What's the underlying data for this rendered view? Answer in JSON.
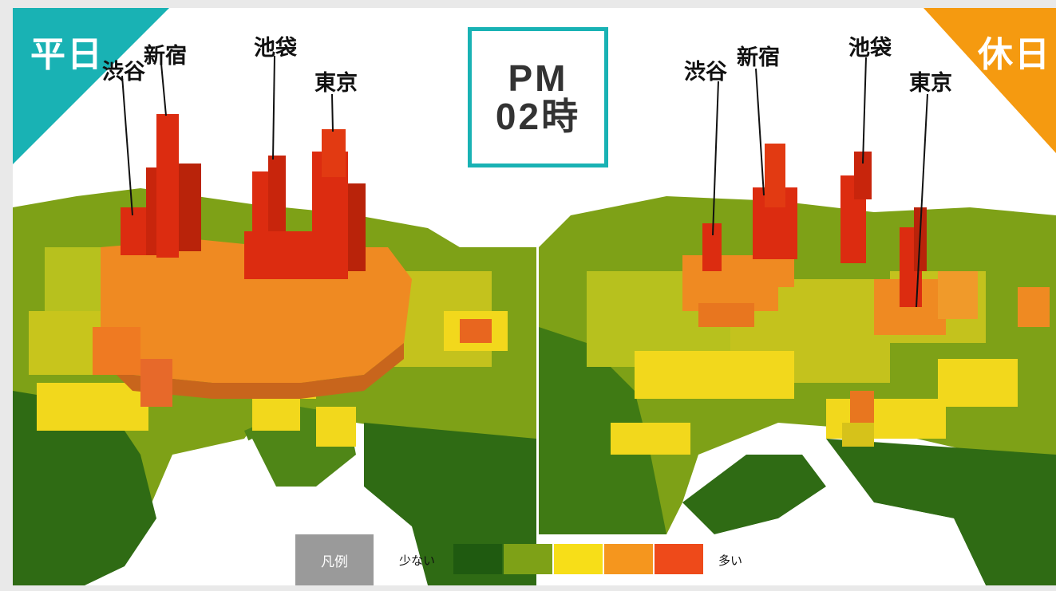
{
  "time": {
    "line1": "PM",
    "line2": "02時"
  },
  "panels": {
    "weekday": {
      "label": "平日",
      "label_color": "#19b2b4",
      "stations": [
        "渋谷",
        "新宿",
        "池袋",
        "東京"
      ]
    },
    "holiday": {
      "label": "休日",
      "label_color": "#f59a10",
      "stations": [
        "渋谷",
        "新宿",
        "池袋",
        "東京"
      ]
    }
  },
  "legend": {
    "title": "凡例",
    "low_label": "少ない",
    "high_label": "多い",
    "scale_colors": [
      "#1f5a10",
      "#7ea117",
      "#f7de18",
      "#f5961e",
      "#ee4a1a"
    ]
  },
  "colors": {
    "dark_green": "#2f6b14",
    "green": "#6f9a1c",
    "yellow_green": "#b7c11e",
    "yellow": "#f2d81c",
    "orange": "#ef8a22",
    "red": "#dc2c10",
    "accent_teal": "#19b2b4",
    "accent_orange": "#f59a10"
  }
}
